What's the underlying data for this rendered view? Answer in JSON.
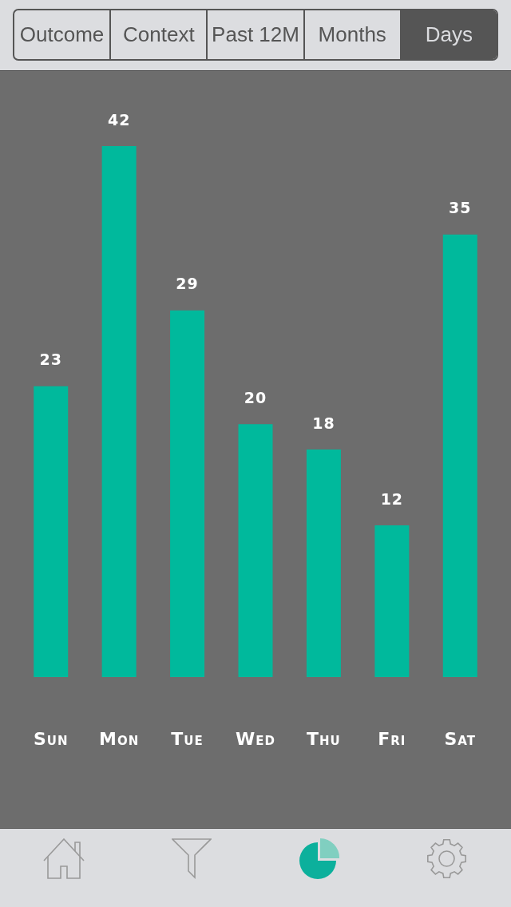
{
  "chart_data": {
    "type": "bar",
    "categories": [
      "Sun",
      "Mon",
      "Tue",
      "Wed",
      "Thu",
      "Fri",
      "Sat"
    ],
    "values": [
      23,
      42,
      29,
      20,
      18,
      12,
      35
    ],
    "color": "#00b99c",
    "data_labels": true,
    "annotations": [
      "Outcome",
      "Context",
      "Past 12M",
      "Months",
      "Days"
    ]
  }
}
